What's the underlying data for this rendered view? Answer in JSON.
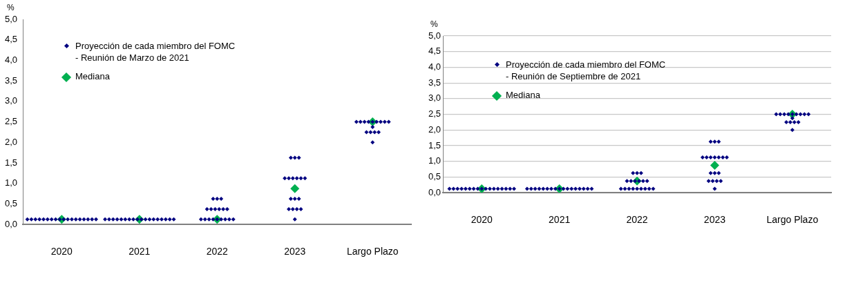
{
  "chart_data": [
    {
      "type": "scatter",
      "ylabel": "%",
      "categories": [
        "2020",
        "2021",
        "2022",
        "2023",
        "Largo Plazo"
      ],
      "ylim": [
        0,
        5
      ],
      "yticks": [
        {
          "value": 0,
          "label": "0,0"
        },
        {
          "value": 0.5,
          "label": "0,5"
        },
        {
          "value": 1,
          "label": "1,0"
        },
        {
          "value": 1.5,
          "label": "1,5"
        },
        {
          "value": 2,
          "label": "2,0"
        },
        {
          "value": 2.5,
          "label": "2,5"
        },
        {
          "value": 3,
          "label": "3,0"
        },
        {
          "value": 3.5,
          "label": "3,5"
        },
        {
          "value": 4,
          "label": "4,0"
        },
        {
          "value": 4.5,
          "label": "4,5"
        },
        {
          "value": 5,
          "label": "5,0"
        }
      ],
      "grid": false,
      "legend": "top left",
      "marker": "diamond",
      "series": [
        {
          "name": "Proyección de cada miembro del FOMC\n- Reunión de Marzo de 2021",
          "color": "#000080",
          "values": [
            0.125,
            0.125,
            0.125,
            0.125,
            2.0
          ]
        },
        {
          "color": "#000080",
          "values": [
            0.125,
            0.125,
            0.125,
            0.375,
            2.25
          ]
        },
        {
          "color": "#000080",
          "values": [
            0.125,
            0.125,
            0.125,
            0.375,
            2.25
          ]
        },
        {
          "color": "#000080",
          "values": [
            0.125,
            0.125,
            0.125,
            0.375,
            2.25
          ]
        },
        {
          "color": "#000080",
          "values": [
            0.125,
            0.125,
            0.125,
            0.375,
            2.25
          ]
        },
        {
          "color": "#000080",
          "values": [
            0.125,
            0.125,
            0.125,
            0.625,
            2.375
          ]
        },
        {
          "color": "#000080",
          "values": [
            0.125,
            0.125,
            0.125,
            0.625,
            2.5
          ]
        },
        {
          "color": "#000080",
          "values": [
            0.125,
            0.125,
            0.125,
            0.625,
            2.5
          ]
        },
        {
          "color": "#000080",
          "values": [
            0.125,
            0.125,
            0.125,
            1.125,
            2.5
          ]
        },
        {
          "color": "#000080",
          "values": [
            0.125,
            0.125,
            0.375,
            1.125,
            2.5
          ]
        },
        {
          "color": "#000080",
          "values": [
            0.125,
            0.125,
            0.375,
            1.125,
            2.5
          ]
        },
        {
          "color": "#000080",
          "values": [
            0.125,
            0.125,
            0.375,
            1.125,
            2.5
          ]
        },
        {
          "color": "#000080",
          "values": [
            0.125,
            0.125,
            0.375,
            1.125,
            2.5
          ]
        },
        {
          "color": "#000080",
          "values": [
            0.125,
            0.125,
            0.375,
            1.125,
            2.5
          ]
        },
        {
          "color": "#000080",
          "values": [
            0.125,
            0.125,
            0.375,
            1.625,
            2.5
          ]
        },
        {
          "color": "#000080",
          "values": [
            0.125,
            0.125,
            0.625,
            1.625,
            null
          ]
        },
        {
          "color": "#000080",
          "values": [
            0.125,
            0.125,
            0.625,
            1.625,
            null
          ]
        },
        {
          "color": "#000080",
          "values": [
            0.125,
            0.125,
            0.625,
            null,
            null
          ]
        },
        {
          "name": "Mediana",
          "color": "#00b050",
          "values": [
            0.125,
            0.125,
            0.125,
            0.875,
            2.5
          ]
        }
      ]
    },
    {
      "type": "scatter",
      "ylabel": "%",
      "categories": [
        "2020",
        "2021",
        "2022",
        "2023",
        "Largo Plazo"
      ],
      "ylim": [
        0,
        5
      ],
      "yticks": [
        {
          "value": 0,
          "label": "0,0"
        },
        {
          "value": 0.5,
          "label": "0,5"
        },
        {
          "value": 1,
          "label": "1,0"
        },
        {
          "value": 1.5,
          "label": "1,5"
        },
        {
          "value": 2,
          "label": "2,0"
        },
        {
          "value": 2.5,
          "label": "2,5"
        },
        {
          "value": 3,
          "label": "3,0"
        },
        {
          "value": 3.5,
          "label": "3,5"
        },
        {
          "value": 4,
          "label": "4,0"
        },
        {
          "value": 4.5,
          "label": "4,5"
        },
        {
          "value": 5,
          "label": "5,0"
        }
      ],
      "grid": "y",
      "legend": "top left",
      "marker": "diamond",
      "series": [
        {
          "name": "Proyección de cada miembro del FOMC\n- Reunión de Septiembre de 2021",
          "color": "#000080",
          "values": [
            0.125,
            0.125,
            0.125,
            0.125,
            2.0
          ]
        },
        {
          "color": "#000080",
          "values": [
            0.125,
            0.125,
            0.125,
            0.375,
            2.25
          ]
        },
        {
          "color": "#000080",
          "values": [
            0.125,
            0.125,
            0.125,
            0.375,
            2.25
          ]
        },
        {
          "color": "#000080",
          "values": [
            0.125,
            0.125,
            0.125,
            0.375,
            2.25
          ]
        },
        {
          "color": "#000080",
          "values": [
            0.125,
            0.125,
            0.125,
            0.375,
            2.25
          ]
        },
        {
          "color": "#000080",
          "values": [
            0.125,
            0.125,
            0.125,
            0.625,
            2.375
          ]
        },
        {
          "color": "#000080",
          "values": [
            0.125,
            0.125,
            0.125,
            0.625,
            2.5
          ]
        },
        {
          "color": "#000080",
          "values": [
            0.125,
            0.125,
            0.125,
            0.625,
            2.5
          ]
        },
        {
          "color": "#000080",
          "values": [
            0.125,
            0.125,
            0.125,
            1.125,
            2.5
          ]
        },
        {
          "color": "#000080",
          "values": [
            0.125,
            0.125,
            0.375,
            1.125,
            2.5
          ]
        },
        {
          "color": "#000080",
          "values": [
            0.125,
            0.125,
            0.375,
            1.125,
            2.5
          ]
        },
        {
          "color": "#000080",
          "values": [
            0.125,
            0.125,
            0.375,
            1.125,
            2.5
          ]
        },
        {
          "color": "#000080",
          "values": [
            0.125,
            0.125,
            0.375,
            1.125,
            2.5
          ]
        },
        {
          "color": "#000080",
          "values": [
            0.125,
            0.125,
            0.375,
            1.125,
            2.5
          ]
        },
        {
          "color": "#000080",
          "values": [
            0.125,
            0.125,
            0.375,
            1.125,
            2.5
          ]
        },
        {
          "color": "#000080",
          "values": [
            0.125,
            0.125,
            0.625,
            1.625,
            null
          ]
        },
        {
          "color": "#000080",
          "values": [
            0.125,
            0.125,
            0.625,
            1.625,
            null
          ]
        },
        {
          "color": "#000080",
          "values": [
            null,
            null,
            0.625,
            1.625,
            null
          ]
        },
        {
          "name": "Mediana",
          "color": "#00b050",
          "values": [
            0.125,
            0.125,
            0.375,
            0.875,
            2.5
          ]
        }
      ]
    }
  ]
}
